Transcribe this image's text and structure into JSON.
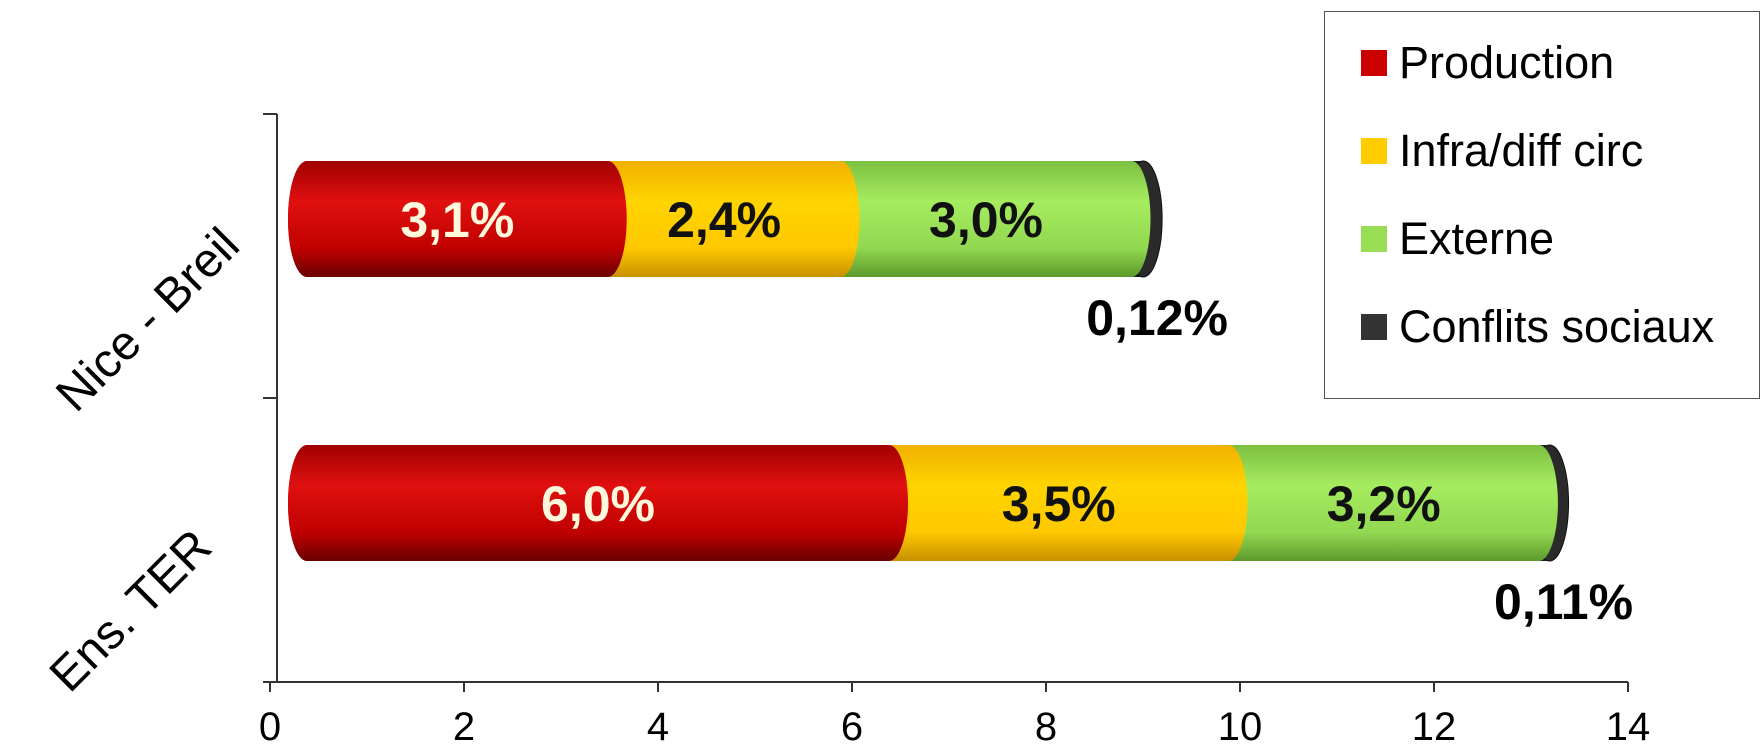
{
  "chart_data": {
    "type": "bar",
    "orientation": "horizontal",
    "stacked": true,
    "categories": [
      "Nice - Breil",
      "Ens. TER"
    ],
    "series": [
      {
        "name": "Production",
        "color": "#cc0000",
        "values": [
          3.1,
          6.0
        ],
        "labels": [
          "3,1%",
          "6,0%"
        ],
        "label_color": "#fff8dc"
      },
      {
        "name": "Infra/diff circ",
        "color": "#ffcc00",
        "values": [
          2.4,
          3.5
        ],
        "labels": [
          "2,4%",
          "3,5%"
        ],
        "label_color": "#111111"
      },
      {
        "name": "Externe",
        "color": "#99dd55",
        "values": [
          3.0,
          3.2
        ],
        "labels": [
          "3,0%",
          "3,2%"
        ],
        "label_color": "#111111"
      },
      {
        "name": "Conflits sociaux",
        "color": "#333333",
        "values": [
          0.12,
          0.11
        ],
        "labels": [
          "0,12%",
          "0,11%"
        ],
        "label_color": "#000000"
      }
    ],
    "xlim": [
      0,
      14
    ],
    "xticks": [
      0,
      2,
      4,
      6,
      8,
      10,
      12,
      14
    ],
    "grid": false,
    "legend_position": "top-right"
  }
}
